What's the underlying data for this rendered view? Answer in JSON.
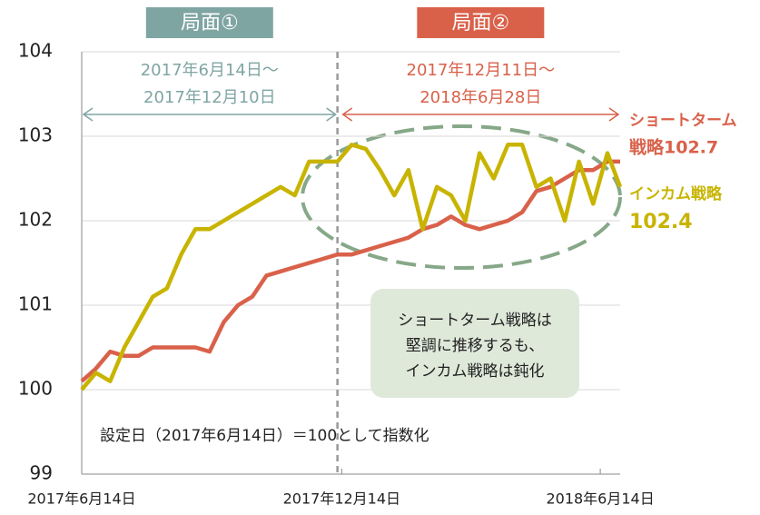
{
  "chart_data": {
    "type": "line",
    "x": [
      "2017-06-14",
      "2017-06-24",
      "2017-07-04",
      "2017-07-14",
      "2017-07-24",
      "2017-08-03",
      "2017-08-13",
      "2017-08-23",
      "2017-09-02",
      "2017-09-12",
      "2017-09-22",
      "2017-10-02",
      "2017-10-12",
      "2017-10-22",
      "2017-11-01",
      "2017-11-11",
      "2017-11-21",
      "2017-12-01",
      "2017-12-11",
      "2017-12-21",
      "2017-12-31",
      "2018-01-10",
      "2018-01-20",
      "2018-01-30",
      "2018-02-09",
      "2018-02-19",
      "2018-03-01",
      "2018-03-11",
      "2018-03-21",
      "2018-03-31",
      "2018-04-10",
      "2018-04-20",
      "2018-04-30",
      "2018-05-10",
      "2018-05-20",
      "2018-05-30",
      "2018-06-09",
      "2018-06-19",
      "2018-06-28"
    ],
    "series": [
      {
        "color": "#d9614a",
        "values": [
          100.1,
          100.25,
          100.45,
          100.4,
          100.4,
          100.5,
          100.5,
          100.5,
          100.5,
          100.45,
          100.8,
          101.0,
          101.1,
          101.35,
          101.4,
          101.45,
          101.5,
          101.55,
          101.6,
          101.6,
          101.65,
          101.7,
          101.75,
          101.8,
          101.9,
          101.95,
          102.05,
          101.95,
          101.9,
          101.95,
          102.0,
          102.1,
          102.35,
          102.4,
          102.5,
          102.6,
          102.6,
          102.7,
          102.7
        ]
      },
      {
        "color": "#c8b400",
        "values": [
          100.0,
          100.2,
          100.1,
          100.5,
          100.8,
          101.1,
          101.2,
          101.6,
          101.9,
          101.9,
          102.0,
          102.1,
          102.2,
          102.3,
          102.4,
          102.3,
          102.7,
          102.7,
          102.7,
          102.9,
          102.85,
          102.6,
          102.3,
          102.6,
          101.9,
          102.4,
          102.3,
          102.0,
          102.8,
          102.5,
          102.9,
          102.9,
          102.4,
          102.5,
          102.0,
          102.7,
          102.2,
          102.8,
          102.4
        ]
      }
    ],
    "xlim": [
      "2017-06-14",
      "2018-06-28"
    ],
    "xticks": [
      {
        "value": "2017-06-14",
        "label": "2017年6月14日"
      },
      {
        "value": "2017-12-14",
        "label": "2017年12月14日"
      },
      {
        "value": "2018-06-14",
        "label": "2018年6月14日"
      }
    ],
    "ylim": [
      99,
      104
    ],
    "yticks": [
      99,
      100,
      101,
      102,
      103,
      104
    ],
    "grid": true,
    "divider": "2017-12-11",
    "phases": [
      {
        "label": "局面①",
        "range": [
          "2017年6月14日～",
          "2017年12月10日"
        ],
        "color": "#7fa5a3"
      },
      {
        "label": "局面②",
        "range": [
          "2017年12月11日～",
          "2018年6月28日"
        ],
        "color": "#d9614a"
      }
    ],
    "end_labels": [
      [
        "ショートターム",
        "戦略102.7"
      ],
      [
        "インカム戦略",
        "102.4"
      ]
    ],
    "note": [
      "ショートターム戦略は",
      "堅調に推移するも、",
      "インカム戦略は鈍化"
    ],
    "footnote": "設定日（2017年6月14日）＝100として指数化"
  }
}
